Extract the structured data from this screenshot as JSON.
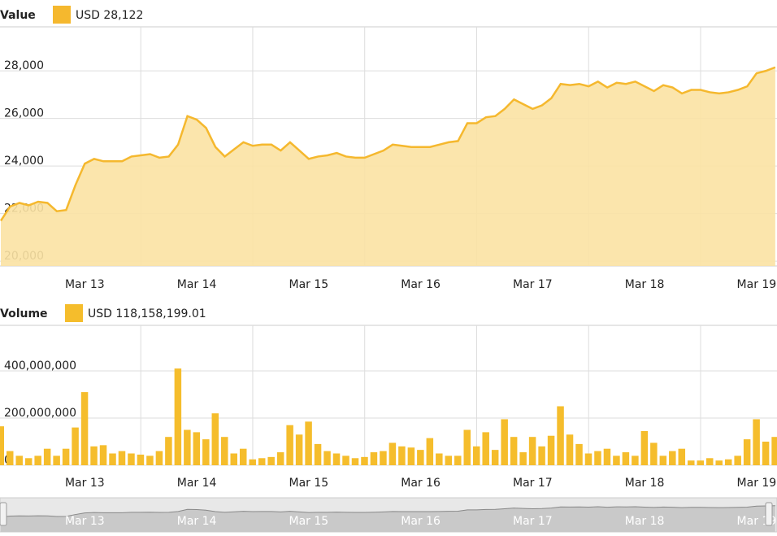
{
  "chart_data": [
    {
      "type": "area",
      "title": "Value",
      "categories": [
        null,
        null,
        null,
        null,
        null,
        null,
        null,
        null,
        null,
        "Mar 13",
        null,
        null,
        null,
        null,
        null,
        null,
        null,
        null,
        null,
        null,
        null,
        "Mar 14",
        null,
        null,
        null,
        null,
        null,
        null,
        null,
        null,
        null,
        null,
        null,
        "Mar 15",
        null,
        null,
        null,
        null,
        null,
        null,
        null,
        null,
        null,
        null,
        null,
        "Mar 16",
        null,
        null,
        null,
        null,
        null,
        null,
        null,
        null,
        null,
        null,
        null,
        "Mar 17",
        null,
        null,
        null,
        null,
        null,
        null,
        null,
        null,
        null,
        null,
        null,
        "Mar 18",
        null,
        null,
        null,
        null,
        null,
        null,
        null,
        null,
        null,
        null,
        null,
        "Mar 19",
        null,
        null
      ],
      "series": [
        {
          "name": "USD 28,122",
          "color": "#f5b82e",
          "fill": "#fbe2a3",
          "values": [
            21700,
            22300,
            22450,
            22350,
            22500,
            22450,
            22100,
            22150,
            23200,
            24100,
            24300,
            24200,
            24200,
            24200,
            24400,
            24450,
            24500,
            24350,
            24400,
            24900,
            26100,
            25950,
            25600,
            24800,
            24400,
            24700,
            25000,
            24850,
            24900,
            24900,
            24650,
            25000,
            24650,
            24300,
            24400,
            24450,
            24550,
            24400,
            24350,
            24350,
            24500,
            24650,
            24900,
            24850,
            24800,
            24800,
            24800,
            24900,
            25000,
            25050,
            25800,
            25800,
            26050,
            26100,
            26400,
            26800,
            26600,
            26400,
            26550,
            26850,
            27450,
            27400,
            27450,
            27350,
            27550,
            27300,
            27500,
            27450,
            27550,
            27350,
            27150,
            27400,
            27300,
            27050,
            27200,
            27200,
            27100,
            27050,
            27100,
            27200,
            27350,
            27900,
            28000,
            28150
          ]
        }
      ],
      "ylim": [
        19800,
        29850
      ],
      "yticks": [
        {
          "value": 20000,
          "label": "20,000"
        },
        {
          "value": 22000,
          "label": "22,000"
        },
        {
          "value": 24000,
          "label": "24,000"
        },
        {
          "value": 26000,
          "label": "26,000"
        },
        {
          "value": 28000,
          "label": "28,000"
        }
      ],
      "grid": true
    },
    {
      "type": "bar",
      "title": "Volume",
      "categories": [
        null,
        null,
        null,
        null,
        null,
        null,
        null,
        null,
        null,
        "Mar 13",
        null,
        null,
        null,
        null,
        null,
        null,
        null,
        null,
        null,
        null,
        null,
        "Mar 14",
        null,
        null,
        null,
        null,
        null,
        null,
        null,
        null,
        null,
        null,
        null,
        "Mar 15",
        null,
        null,
        null,
        null,
        null,
        null,
        null,
        null,
        null,
        null,
        null,
        "Mar 16",
        null,
        null,
        null,
        null,
        null,
        null,
        null,
        null,
        null,
        null,
        null,
        "Mar 17",
        null,
        null,
        null,
        null,
        null,
        null,
        null,
        null,
        null,
        null,
        null,
        "Mar 18",
        null,
        null,
        null,
        null,
        null,
        null,
        null,
        null,
        null,
        null,
        null,
        "Mar 19",
        null,
        null
      ],
      "series": [
        {
          "name": "USD 118,158,199.01",
          "color": "#f5bd2c",
          "values": [
            165000000,
            60000000,
            40000000,
            30000000,
            40000000,
            70000000,
            40000000,
            70000000,
            160000000,
            310000000,
            80000000,
            85000000,
            50000000,
            60000000,
            50000000,
            45000000,
            40000000,
            60000000,
            120000000,
            410000000,
            150000000,
            140000000,
            110000000,
            220000000,
            120000000,
            50000000,
            70000000,
            25000000,
            30000000,
            35000000,
            55000000,
            170000000,
            130000000,
            185000000,
            90000000,
            60000000,
            50000000,
            40000000,
            30000000,
            35000000,
            55000000,
            60000000,
            95000000,
            80000000,
            75000000,
            65000000,
            115000000,
            50000000,
            40000000,
            40000000,
            150000000,
            80000000,
            140000000,
            65000000,
            195000000,
            120000000,
            55000000,
            120000000,
            80000000,
            125000000,
            250000000,
            130000000,
            90000000,
            50000000,
            60000000,
            70000000,
            40000000,
            55000000,
            40000000,
            145000000,
            95000000,
            40000000,
            60000000,
            70000000,
            20000000,
            20000000,
            30000000,
            20000000,
            25000000,
            40000000,
            110000000,
            195000000,
            100000000,
            120000000
          ]
        }
      ],
      "ylim": [
        0,
        593000000
      ],
      "yticks": [
        0,
        {
          "value": 200000000,
          "label": "200,000,000"
        },
        {
          "value": 400000000,
          "label": "400,000,000"
        }
      ],
      "grid": true
    }
  ]
}
